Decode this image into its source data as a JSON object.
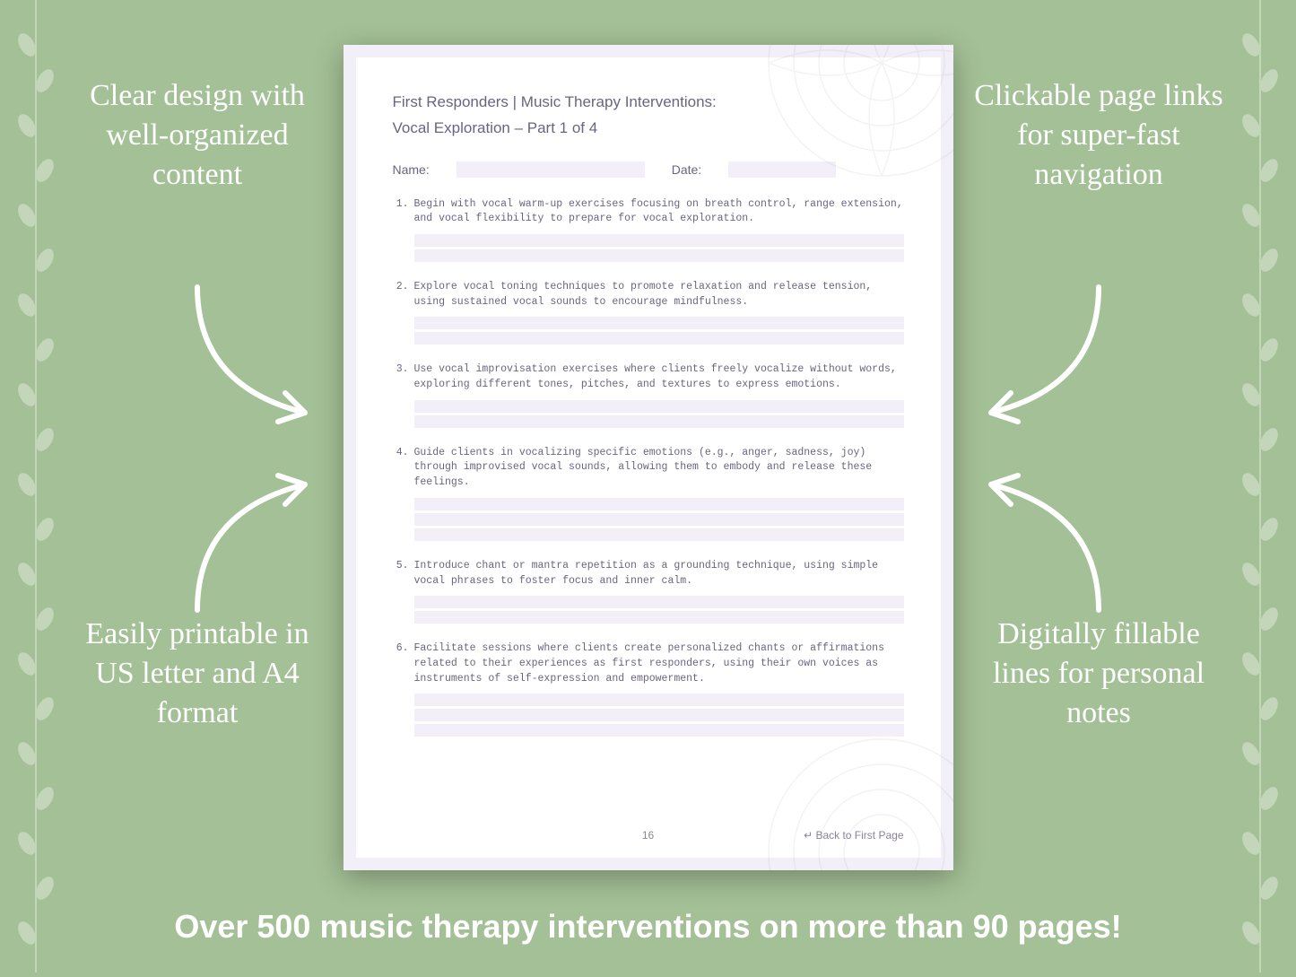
{
  "colors": {
    "background": "#a4c096",
    "callout_text": "#ffffff",
    "page_bg": "#ffffff",
    "page_border": "#f3eff8",
    "page_text": "#6b6480",
    "fill_line": "#f3eff8",
    "footer_text": "#8a8399",
    "leaf_opacity": 0.35
  },
  "callouts": {
    "top_left": "Clear design with well-organized content",
    "top_right": "Clickable page links for super-fast navigation",
    "bottom_left": "Easily printable in US letter and A4 format",
    "bottom_right": "Digitally fillable lines for personal notes"
  },
  "banner": "Over 500 music therapy interventions on more than 90 pages!",
  "page": {
    "title_line1": "First Responders | Music Therapy Interventions:",
    "title_line2": "Vocal Exploration – Part 1 of 4",
    "name_label": "Name:",
    "date_label": "Date:",
    "items": [
      "Begin with vocal warm-up exercises focusing on breath control, range extension, and vocal flexibility to prepare for vocal exploration.",
      "Explore vocal toning techniques to promote relaxation and release tension, using sustained vocal sounds to encourage mindfulness.",
      "Use vocal improvisation exercises where clients freely vocalize without words, exploring different tones, pitches, and textures to express emotions.",
      "Guide clients in vocalizing specific emotions (e.g., anger, sadness, joy) through improvised vocal sounds, allowing them to embody and release these feelings.",
      "Introduce chant or mantra repetition as a grounding technique, using simple vocal phrases to foster focus and inner calm.",
      "Facilitate sessions where clients create personalized chants or affirmations related to their experiences as first responders, using their own voices as instruments of self-expression and empowerment."
    ],
    "lines_per_item": [
      2,
      2,
      2,
      3,
      2,
      3
    ],
    "page_number": "16",
    "back_link": "↵ Back to First Page"
  }
}
